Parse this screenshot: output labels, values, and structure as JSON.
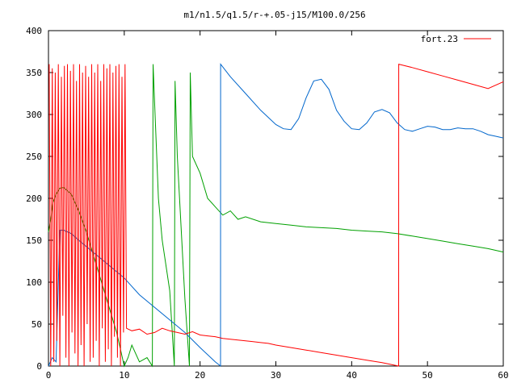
{
  "chart_data": {
    "type": "line",
    "title": "m1/n1.5/q1.5/r-+.05-j15/M100.0/256",
    "xlabel": "",
    "ylabel": "",
    "xlim": [
      0,
      60
    ],
    "ylim": [
      0,
      400
    ],
    "x_ticks": [
      0,
      10,
      20,
      30,
      40,
      50,
      60
    ],
    "y_ticks": [
      0,
      50,
      100,
      150,
      200,
      250,
      300,
      350,
      400
    ],
    "grid": false,
    "legend_position": "top-right",
    "series": [
      {
        "name": "fort.23",
        "color": "#ff0000",
        "x": [
          0.1,
          0.3,
          0.5,
          0.7,
          0.9,
          1.1,
          1.3,
          1.5,
          1.7,
          1.9,
          2.1,
          2.3,
          2.5,
          2.7,
          2.9,
          3.1,
          3.3,
          3.5,
          3.7,
          3.9,
          4.1,
          4.3,
          4.5,
          4.7,
          4.9,
          5.1,
          5.3,
          5.5,
          5.7,
          5.9,
          6.1,
          6.3,
          6.5,
          6.7,
          6.9,
          7.1,
          7.3,
          7.5,
          7.7,
          7.9,
          8.1,
          8.3,
          8.5,
          8.7,
          8.9,
          9.1,
          9.3,
          9.5,
          9.7,
          9.9,
          10.1,
          10.3,
          11,
          12,
          13,
          14,
          15,
          16,
          17,
          18,
          19,
          20,
          21,
          22,
          23,
          24,
          25,
          26,
          27,
          28,
          29,
          30,
          32,
          34,
          36,
          38,
          40,
          42,
          44,
          46.2,
          46.21,
          48,
          50,
          52,
          54,
          56,
          58,
          60
        ],
        "y": [
          360,
          0,
          355,
          5,
          350,
          30,
          360,
          0,
          345,
          60,
          358,
          10,
          360,
          0,
          352,
          40,
          360,
          15,
          340,
          0,
          360,
          25,
          350,
          0,
          358,
          50,
          345,
          5,
          360,
          10,
          350,
          30,
          360,
          0,
          340,
          45,
          360,
          5,
          355,
          20,
          360,
          0,
          350,
          35,
          358,
          10,
          360,
          0,
          345,
          40,
          360,
          45,
          42,
          44,
          38,
          40,
          45,
          42,
          40,
          38,
          41,
          37,
          36,
          35,
          33,
          32,
          31,
          30,
          29,
          28,
          27,
          25,
          22,
          19,
          16,
          13,
          10,
          7,
          4,
          0,
          360,
          356,
          351,
          346,
          341,
          336,
          331,
          339
        ]
      },
      {
        "name": "",
        "color": "#00a000",
        "x": [
          0,
          0.3,
          0.6,
          1,
          1.5,
          2,
          3,
          4,
          5,
          6,
          7,
          8,
          9,
          9.5,
          10,
          10.5,
          11,
          12,
          13,
          13.7,
          13.8,
          14.5,
          15,
          16,
          16.6,
          16.7,
          17,
          18,
          18.6,
          18.7,
          19,
          20,
          21,
          22,
          23,
          24,
          25,
          26,
          28,
          30,
          32,
          34,
          36,
          38,
          40,
          42,
          44,
          46,
          48,
          50,
          52,
          54,
          56,
          58,
          60
        ],
        "y": [
          160,
          175,
          195,
          205,
          212,
          213,
          205,
          185,
          160,
          130,
          100,
          70,
          40,
          20,
          0,
          10,
          25,
          5,
          10,
          0,
          360,
          200,
          150,
          90,
          0,
          340,
          250,
          80,
          0,
          350,
          250,
          230,
          200,
          190,
          180,
          185,
          175,
          178,
          172,
          170,
          168,
          166,
          165,
          164,
          162,
          161,
          160,
          158,
          155,
          152,
          149,
          146,
          143,
          140,
          136
        ]
      },
      {
        "name": "",
        "color": "#0066cc",
        "x": [
          0,
          0.5,
          1,
          1.5,
          2,
          3,
          4,
          6,
          8,
          10,
          12,
          14,
          16,
          18,
          20,
          22,
          22.7,
          22.71,
          24,
          26,
          28,
          30,
          31,
          32,
          33,
          34,
          35,
          36,
          37,
          38,
          39,
          40,
          41,
          42,
          43,
          44,
          45,
          46,
          47,
          48,
          49,
          50,
          51,
          52,
          53,
          54,
          55,
          56,
          57,
          58,
          59,
          60
        ],
        "y": [
          0,
          10,
          5,
          162,
          162,
          158,
          150,
          135,
          120,
          105,
          85,
          70,
          55,
          40,
          22,
          5,
          0,
          360,
          345,
          325,
          305,
          288,
          283,
          282,
          295,
          320,
          340,
          342,
          330,
          305,
          292,
          283,
          282,
          290,
          303,
          306,
          302,
          290,
          282,
          280,
          283,
          286,
          285,
          282,
          282,
          284,
          283,
          283,
          280,
          276,
          274,
          272
        ]
      }
    ]
  }
}
